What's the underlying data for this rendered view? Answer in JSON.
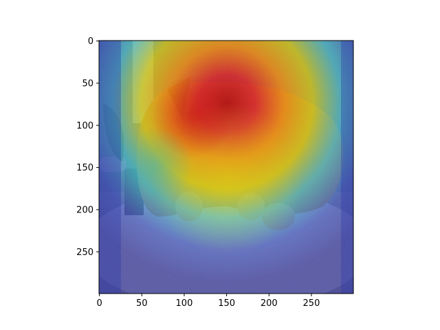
{
  "chart_data": {
    "type": "heatmap",
    "title": "",
    "xlabel": "",
    "ylabel": "",
    "xlim": [
      0,
      299
    ],
    "ylim": [
      299,
      0
    ],
    "x_ticks": [
      0,
      50,
      100,
      150,
      200,
      250
    ],
    "y_ticks": [
      0,
      50,
      100,
      150,
      200,
      250
    ],
    "x_tick_labels": [
      "0",
      "50",
      "100",
      "150",
      "200",
      "250"
    ],
    "y_tick_labels": [
      "0",
      "50",
      "100",
      "150",
      "200",
      "250"
    ],
    "grid": false,
    "legend": "none",
    "colormap": "jet",
    "overlay_on": "photo-of-dog",
    "hotspots": [
      {
        "x": 150,
        "y": 70,
        "intensity": 1.0
      },
      {
        "x": 105,
        "y": 80,
        "intensity": 0.85
      },
      {
        "x": 95,
        "y": 150,
        "intensity": 0.6
      },
      {
        "x": 175,
        "y": 220,
        "intensity": 0.45
      }
    ],
    "colors": {
      "dark_red": "#b40000",
      "red": "#e41a1c",
      "orange": "#ff8c00",
      "yellow": "#e6d800",
      "cyan": "#3cd2e6",
      "blue": "#3a54d6",
      "deep_blue": "#3333a8"
    }
  }
}
